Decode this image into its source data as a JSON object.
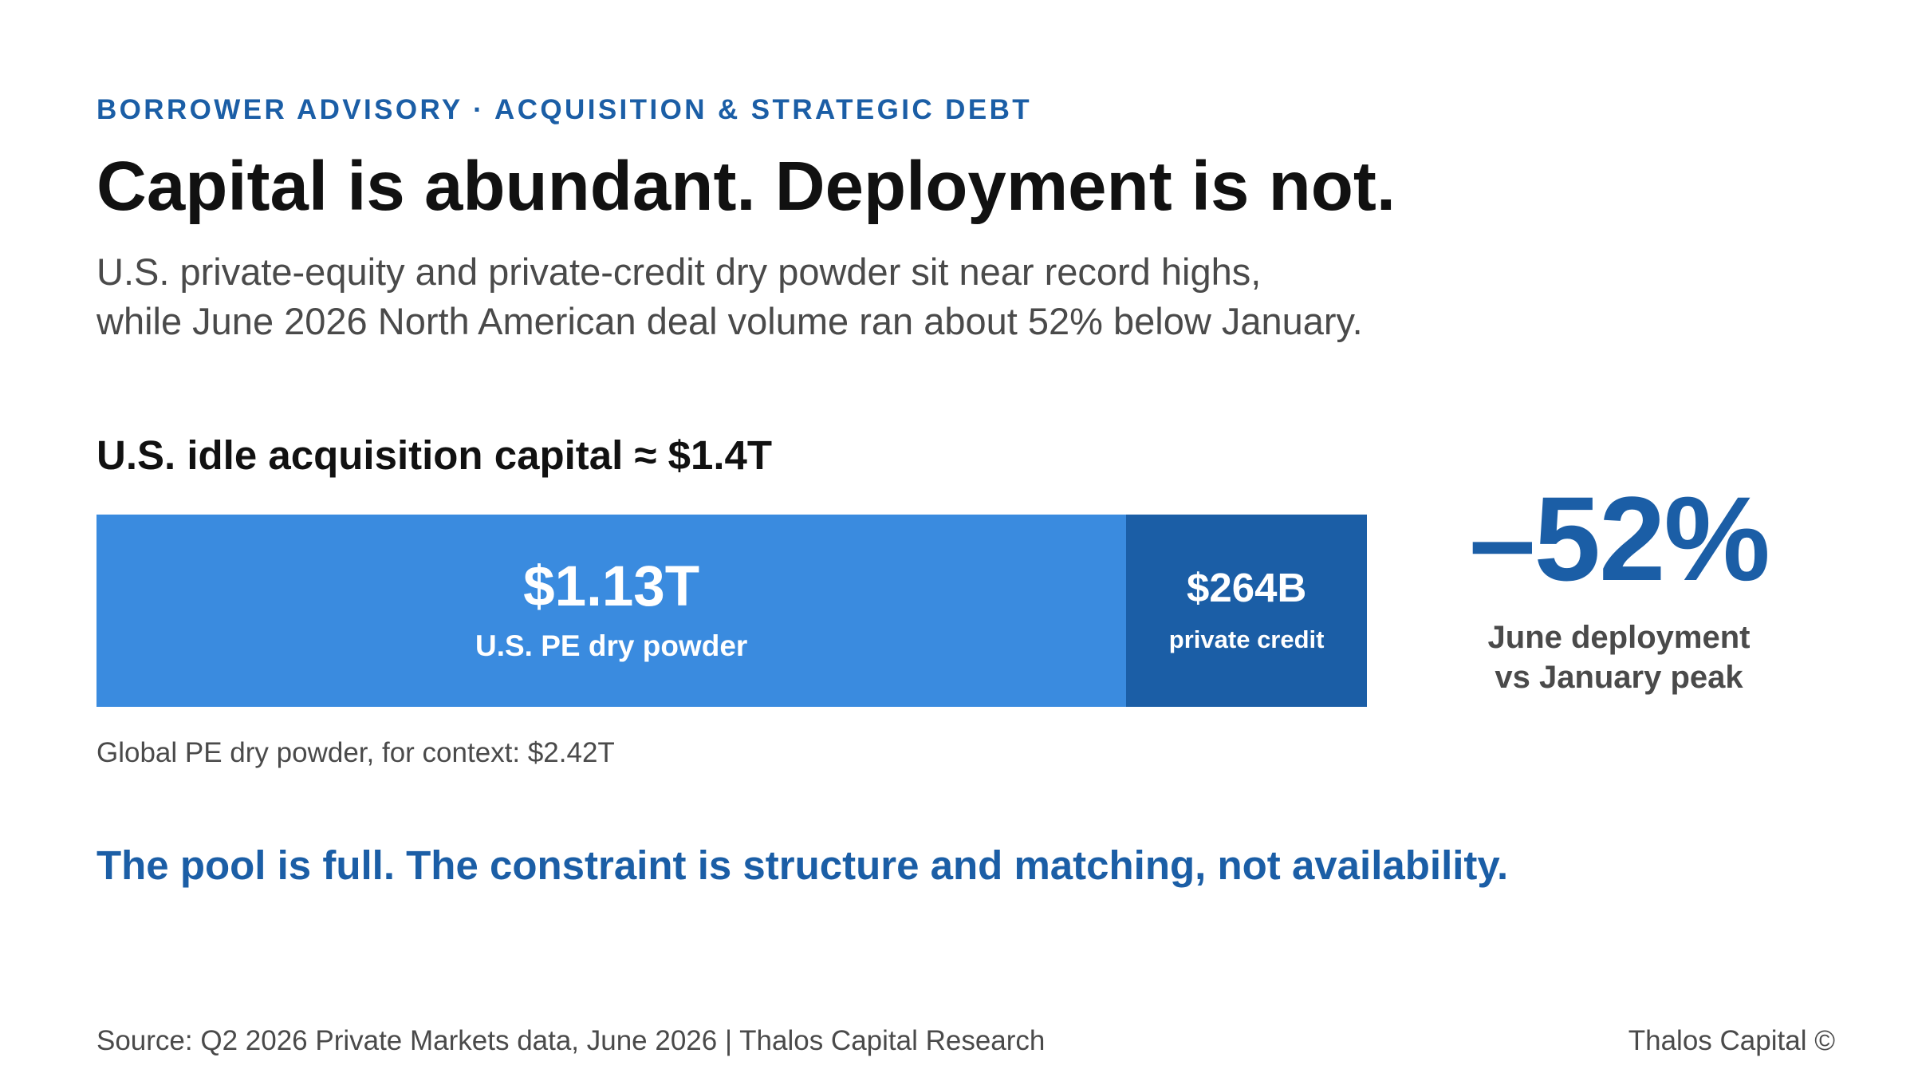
{
  "header": {
    "eyebrow": "BORROWER ADVISORY · ACQUISITION & STRATEGIC DEBT",
    "headline": "Capital is abundant. Deployment is not.",
    "subhead_lines": [
      "U.S. private-equity and private-credit dry powder sit near record highs,",
      "while June 2026 North American deal volume ran about 52% below January."
    ]
  },
  "chart_data": {
    "type": "bar",
    "orientation": "horizontal-stacked",
    "title": "U.S. idle acquisition capital ≈ $1.4T",
    "unit": "USD billions",
    "segments": [
      {
        "name": "U.S. PE dry powder",
        "value": 1130,
        "value_label": "$1.13T",
        "color": "#3a8bdf"
      },
      {
        "name": "private credit",
        "value": 264,
        "value_label": "$264B",
        "color": "#1b5ea6"
      }
    ],
    "context_note": "Global PE dry powder, for context: $2.42T"
  },
  "callout": {
    "value": "–52%",
    "label_lines": [
      "June deployment",
      "vs January peak"
    ],
    "color": "#1b5ea6"
  },
  "takeaway": "The pool is full. The constraint is structure and matching, not availability.",
  "footer": {
    "source": "Source: Q2 2026 Private Markets data, June 2026 | Thalos Capital Research",
    "brand": "Thalos Capital ©"
  },
  "colors": {
    "accent": "#1b5ea6",
    "accent_light": "#3a8bdf",
    "text_dark": "#111111",
    "text_muted": "#4a4a4a"
  }
}
